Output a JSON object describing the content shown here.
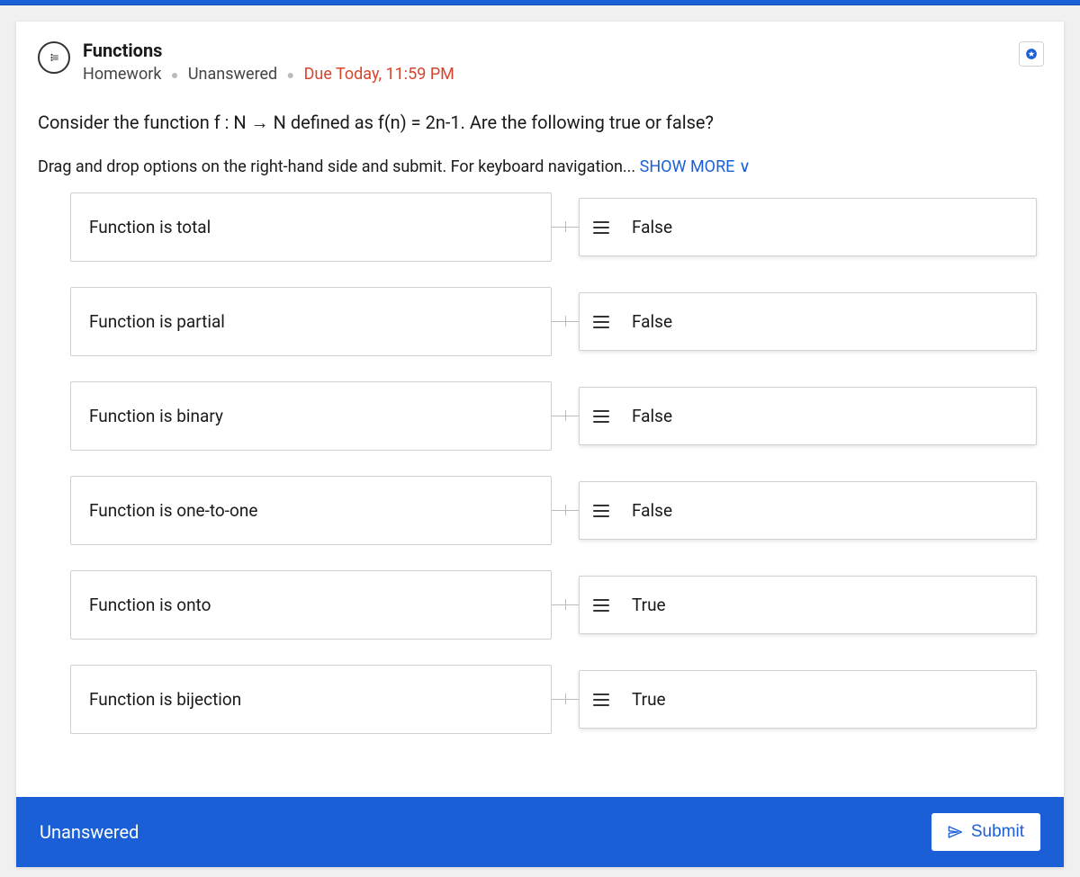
{
  "header": {
    "title": "Functions",
    "category": "Homework",
    "status": "Unanswered",
    "due": "Due Today, 11:59 PM"
  },
  "question": "Consider the function f : N → N defined as f(n) = 2n-1. Are the following true or false?",
  "instruction_prefix": "Drag and drop options on the right-hand side and submit. For keyboard navigation... ",
  "show_more_label": "SHOW MORE ∨",
  "rows": [
    {
      "left": "Function is total",
      "right": "False"
    },
    {
      "left": "Function is partial",
      "right": "False"
    },
    {
      "left": "Function is binary",
      "right": "False"
    },
    {
      "left": "Function is one-to-one",
      "right": "False"
    },
    {
      "left": "Function is onto",
      "right": "True"
    },
    {
      "left": "Function is bijection",
      "right": "True"
    }
  ],
  "footer": {
    "status": "Unanswered",
    "submit_label": "Submit"
  },
  "colors": {
    "primary": "#1a5fd6",
    "due": "#d6452d",
    "border": "#d0d0d0",
    "text": "#1a1a1a"
  }
}
